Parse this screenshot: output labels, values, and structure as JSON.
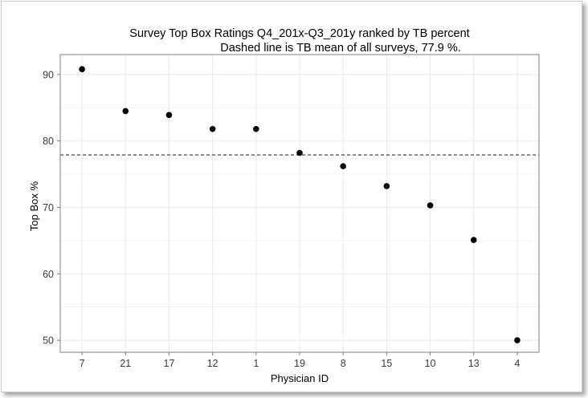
{
  "chart_data": {
    "type": "scatter",
    "title": "Survey Top Box Ratings Q4_201x-Q3_201y ranked by TB percent",
    "subtitle": "Dashed line is TB mean of all surveys, 77.9 %.",
    "xlabel": "Physician ID",
    "ylabel": "Top Box %",
    "categories": [
      "7",
      "21",
      "17",
      "12",
      "1",
      "19",
      "8",
      "15",
      "10",
      "13",
      "4"
    ],
    "values": [
      90.8,
      84.5,
      83.9,
      81.8,
      81.8,
      78.2,
      76.2,
      73.2,
      70.3,
      65.1,
      50.0
    ],
    "reference_line": {
      "value": 77.9,
      "style": "dashed"
    },
    "yticks": [
      50,
      60,
      70,
      80,
      90
    ],
    "ylim": [
      48.2,
      93.0
    ],
    "grid": true,
    "colors": {
      "points": "#000000",
      "grid": "#ebebeb",
      "panel_border": "#7f7f7f",
      "reference_line": "#333333"
    }
  }
}
